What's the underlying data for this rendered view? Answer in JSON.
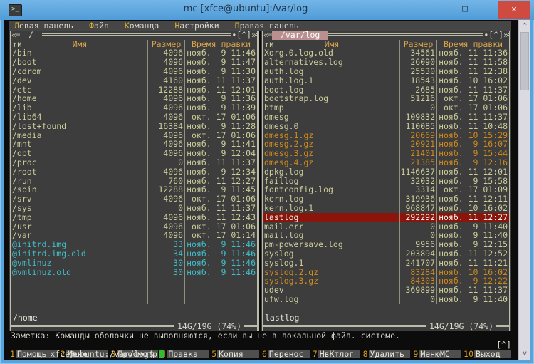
{
  "window": {
    "title": "mc [xfce@ubuntu]:/var/log",
    "minimize": "–",
    "maximize": "□",
    "close": "×",
    "app_icon_glyph": ">_"
  },
  "colors": {
    "titlebar": "#57a3de",
    "close_button": "#cf4a3f",
    "terminal_bg": "#0c0c0c",
    "panel_bg": "#3d3d3d",
    "frame": "#bcbcab",
    "text": "#cdcd9a",
    "header_text": "#d7a34c",
    "symlink": "#3fbfca",
    "archive": "#cf8a1d",
    "selected_bg": "#8c150b",
    "selected_text": "#f4f4ea",
    "active_path_bg": "#b98f8f",
    "menu_hotkey": "#d9ae33",
    "cursor": "#33bb33",
    "key_number": "#d9a014",
    "key_label_bg": "#4f4f4f"
  },
  "menu": {
    "items": [
      {
        "hot": "Л",
        "rest": "евая панель"
      },
      {
        "hot": "Ф",
        "rest": "айл"
      },
      {
        "hot": "К",
        "rest": "оманда"
      },
      {
        "hot": "Н",
        "rest": "астройки"
      },
      {
        "hot": "П",
        "rest": "равая панель"
      }
    ]
  },
  "panel_chrome": {
    "left_deco": "«═",
    "right_deco": "•[^]»",
    "sort_marker": "↑и",
    "columns": [
      "Имя",
      "Размер",
      "Время правки"
    ]
  },
  "left_panel": {
    "path": "/",
    "active": false,
    "mini_status": "/home",
    "free_space": "14G/19G (74%)",
    "rows": [
      [
        "/bin",
        "4096",
        "нояб.  9 11:46",
        "dir"
      ],
      [
        "/boot",
        "4096",
        "нояб.  9 11:47",
        "dir"
      ],
      [
        "/cdrom",
        "4096",
        "нояб.  9 11:30",
        "dir"
      ],
      [
        "/dev",
        "4160",
        "нояб. 11 11:37",
        "dir"
      ],
      [
        "/etc",
        "12288",
        "нояб. 11 12:01",
        "dir"
      ],
      [
        "/home",
        "4096",
        "нояб.  9 11:36",
        "dir"
      ],
      [
        "/lib",
        "4096",
        "нояб.  9 11:39",
        "dir"
      ],
      [
        "/lib64",
        "4096",
        "окт. 17 01:06",
        "dir"
      ],
      [
        "/lost+found",
        "16384",
        "нояб.  9 11:28",
        "dir"
      ],
      [
        "/media",
        "4096",
        "окт. 17 01:06",
        "dir"
      ],
      [
        "/mnt",
        "4096",
        "нояб.  9 11:41",
        "dir"
      ],
      [
        "/opt",
        "4096",
        "нояб.  9 12:04",
        "dir"
      ],
      [
        "/proc",
        "0",
        "нояб. 11 11:37",
        "dir"
      ],
      [
        "/root",
        "4096",
        "нояб.  9 12:34",
        "dir"
      ],
      [
        "/run",
        "760",
        "нояб. 11 12:27",
        "dir"
      ],
      [
        "/sbin",
        "12288",
        "нояб.  9 11:45",
        "dir"
      ],
      [
        "/srv",
        "4096",
        "окт. 17 01:06",
        "dir"
      ],
      [
        "/sys",
        "0",
        "нояб. 11 11:37",
        "dir"
      ],
      [
        "/tmp",
        "4096",
        "нояб. 11 12:43",
        "dir"
      ],
      [
        "/usr",
        "4096",
        "окт. 17 01:06",
        "dir"
      ],
      [
        "/var",
        "4096",
        "окт. 17 01:14",
        "dir"
      ],
      [
        "@initrd.img",
        "33",
        "нояб.  9 11:46",
        "link"
      ],
      [
        "@initrd.img.old",
        "34",
        "нояб.  9 11:46",
        "link"
      ],
      [
        "@vmlinuz",
        "30",
        "нояб.  9 11:46",
        "link"
      ],
      [
        "@vmlinuz.old",
        "30",
        "нояб.  9 11:46",
        "link"
      ],
      [
        "",
        "",
        "",
        "blank"
      ],
      [
        "",
        "",
        "",
        "blank"
      ],
      [
        "",
        "",
        "",
        "blank"
      ]
    ]
  },
  "right_panel": {
    "path": "/var/log",
    "active": true,
    "mini_status": "lastlog",
    "free_space": "14G/19G (74%)",
    "rows": [
      [
        "Xorg.0.log.old",
        "34561",
        "нояб. 11 11:36",
        "file"
      ],
      [
        "alternatives.log",
        "26090",
        "нояб. 11 11:58",
        "file"
      ],
      [
        "auth.log",
        "25530",
        "нояб. 11 12:38",
        "file"
      ],
      [
        "auth.log.1",
        "18543",
        "нояб. 10 16:02",
        "file"
      ],
      [
        "boot.log",
        "2685",
        "нояб. 11 11:37",
        "file"
      ],
      [
        "bootstrap.log",
        "51216",
        "окт. 17 01:06",
        "file"
      ],
      [
        "btmp",
        "0",
        "окт. 17 01:06",
        "file"
      ],
      [
        "dmesg",
        "109832",
        "нояб. 11 11:37",
        "file"
      ],
      [
        "dmesg.0",
        "110085",
        "нояб. 11 10:48",
        "file"
      ],
      [
        "dmesg.1.gz",
        "20669",
        "нояб. 10 15:29",
        "gz"
      ],
      [
        "dmesg.2.gz",
        "20921",
        "нояб.  9 16:07",
        "gz"
      ],
      [
        "dmesg.3.gz",
        "21401",
        "нояб.  9 15:44",
        "gz"
      ],
      [
        "dmesg.4.gz",
        "21385",
        "нояб.  9 12:16",
        "gz"
      ],
      [
        "dpkg.log",
        "1146637",
        "нояб. 11 12:01",
        "file"
      ],
      [
        "faillog",
        "32032",
        "нояб.  9 15:58",
        "file"
      ],
      [
        "fontconfig.log",
        "3314",
        "окт. 17 01:09",
        "file"
      ],
      [
        "kern.log",
        "319936",
        "нояб. 11 12:11",
        "file"
      ],
      [
        "kern.log.1",
        "968847",
        "нояб. 10 16:02",
        "file"
      ],
      [
        "lastlog",
        "292292",
        "нояб. 11 12:27",
        "sel"
      ],
      [
        "mail.err",
        "0",
        "нояб.  9 11:40",
        "file"
      ],
      [
        "mail.log",
        "0",
        "нояб.  9 11:40",
        "file"
      ],
      [
        "pm-powersave.log",
        "9956",
        "нояб.  9 12:15",
        "file"
      ],
      [
        "syslog",
        "203894",
        "нояб. 11 12:52",
        "file"
      ],
      [
        "syslog.1",
        "241707",
        "нояб. 11 11:21",
        "file"
      ],
      [
        "syslog.2.gz",
        "83284",
        "нояб. 10 16:02",
        "gz"
      ],
      [
        "syslog.3.gz",
        "84303",
        "нояб.  9 12:22",
        "gz"
      ],
      [
        "udev",
        "369899",
        "нояб. 11 11:37",
        "file"
      ],
      [
        "ufw.log",
        "0",
        "нояб.  9 11:40",
        "file"
      ]
    ]
  },
  "hint": "Заметка: Команды оболочки не выполняются, если вы не в локальной файл. системе.",
  "command_line": {
    "prompt": "xfce@ubuntu:/var/log$ ",
    "updir_button": "[^]"
  },
  "keybar": [
    {
      "num": "1",
      "label": "Помощь"
    },
    {
      "num": "2",
      "label": "Меню"
    },
    {
      "num": "3",
      "label": "Просмотр"
    },
    {
      "num": "4",
      "label": "Правка"
    },
    {
      "num": "5",
      "label": "Копия"
    },
    {
      "num": "6",
      "label": "Перенос"
    },
    {
      "num": "7",
      "label": "НвКтлог"
    },
    {
      "num": "8",
      "label": "Удалить"
    },
    {
      "num": "9",
      "label": "МенюМС"
    },
    {
      "num": "10",
      "label": "Выход"
    }
  ],
  "scrollbar": {
    "up": "^",
    "down": "v"
  }
}
